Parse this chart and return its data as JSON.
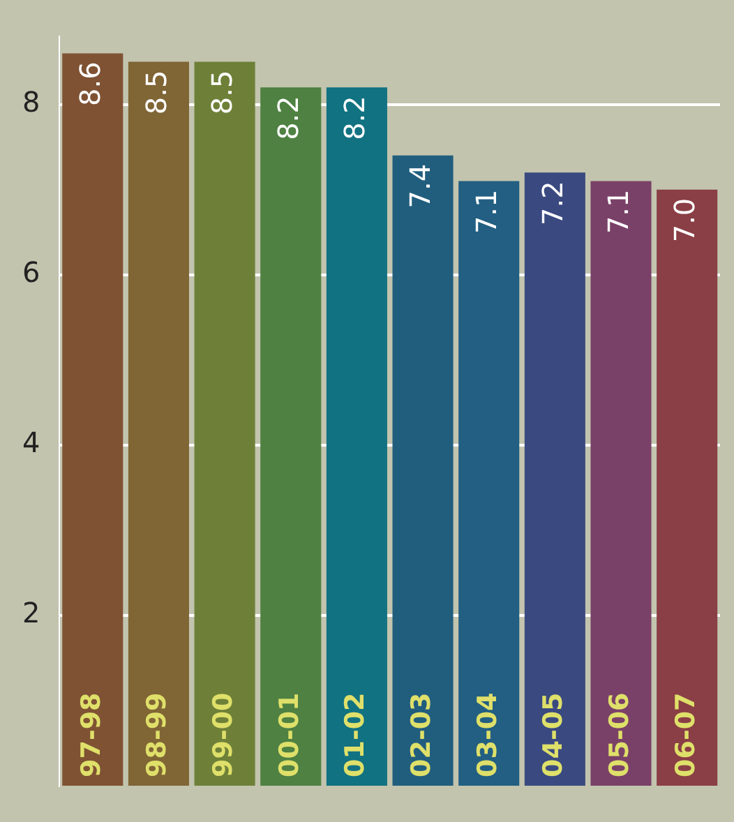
{
  "chart_data": {
    "type": "bar",
    "categories": [
      "97-98",
      "98-99",
      "99-00",
      "00-01",
      "01-02",
      "02-03",
      "03-04",
      "04-05",
      "05-06",
      "06-07"
    ],
    "values": [
      8.6,
      8.5,
      8.5,
      8.2,
      8.2,
      7.4,
      7.1,
      7.2,
      7.1,
      7.0
    ],
    "colors": [
      "#7f5233",
      "#806535",
      "#6e8038",
      "#4e8142",
      "#117282",
      "#215e7e",
      "#225f82",
      "#3a4a80",
      "#7a4168",
      "#8a3e45"
    ],
    "value_labels": [
      "8.6",
      "8.5",
      "8.5",
      "8.2",
      "8.2",
      "7.4",
      "7.1",
      "7.2",
      "7.1",
      "7.0"
    ],
    "ylim": [
      0,
      8.8
    ],
    "yticks": [
      2,
      4,
      6,
      8
    ],
    "grid": "y",
    "legend": false
  }
}
